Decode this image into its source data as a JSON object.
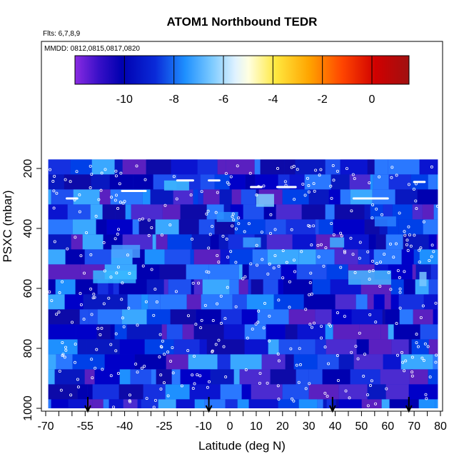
{
  "chart_data": {
    "type": "heatmap",
    "title": "ATOM1 Northbound TEDR",
    "flights_label": "Flts: 6,7,8,9",
    "dates_label": "MMDD: 0812,0815,0817,0820",
    "xlabel": "Latitude (deg N)",
    "ylabel": "PSXC (mbar)",
    "xlim": [
      -70,
      80
    ],
    "ylim": [
      1000,
      150
    ],
    "y_reversed": true,
    "x_ticks": [
      "-70",
      "-55",
      "-40",
      "-25",
      "-10",
      "0",
      "10",
      "20",
      "30",
      "40",
      "50",
      "60",
      "70",
      "80"
    ],
    "x_tick_values": [
      -70,
      -55,
      -40,
      -25,
      -10,
      0,
      10,
      20,
      30,
      40,
      50,
      60,
      70,
      80
    ],
    "y_ticks": [
      "200",
      "400",
      "600",
      "800",
      "1000"
    ],
    "y_tick_values": [
      200,
      400,
      600,
      800,
      1000
    ],
    "colorbar": {
      "range": [
        -12,
        1.5
      ],
      "ticks": [
        "-10",
        "-8",
        "-6",
        "-4",
        "-2",
        "0"
      ],
      "tick_values": [
        -10,
        -8,
        -6,
        -4,
        -2,
        0
      ]
    },
    "data_extent": {
      "lat": [
        -69,
        79
      ],
      "pressure": [
        170,
        1000
      ]
    },
    "profile_arrows_lat": [
      -54,
      -8,
      39,
      68
    ],
    "grid": false,
    "legend": "none"
  }
}
